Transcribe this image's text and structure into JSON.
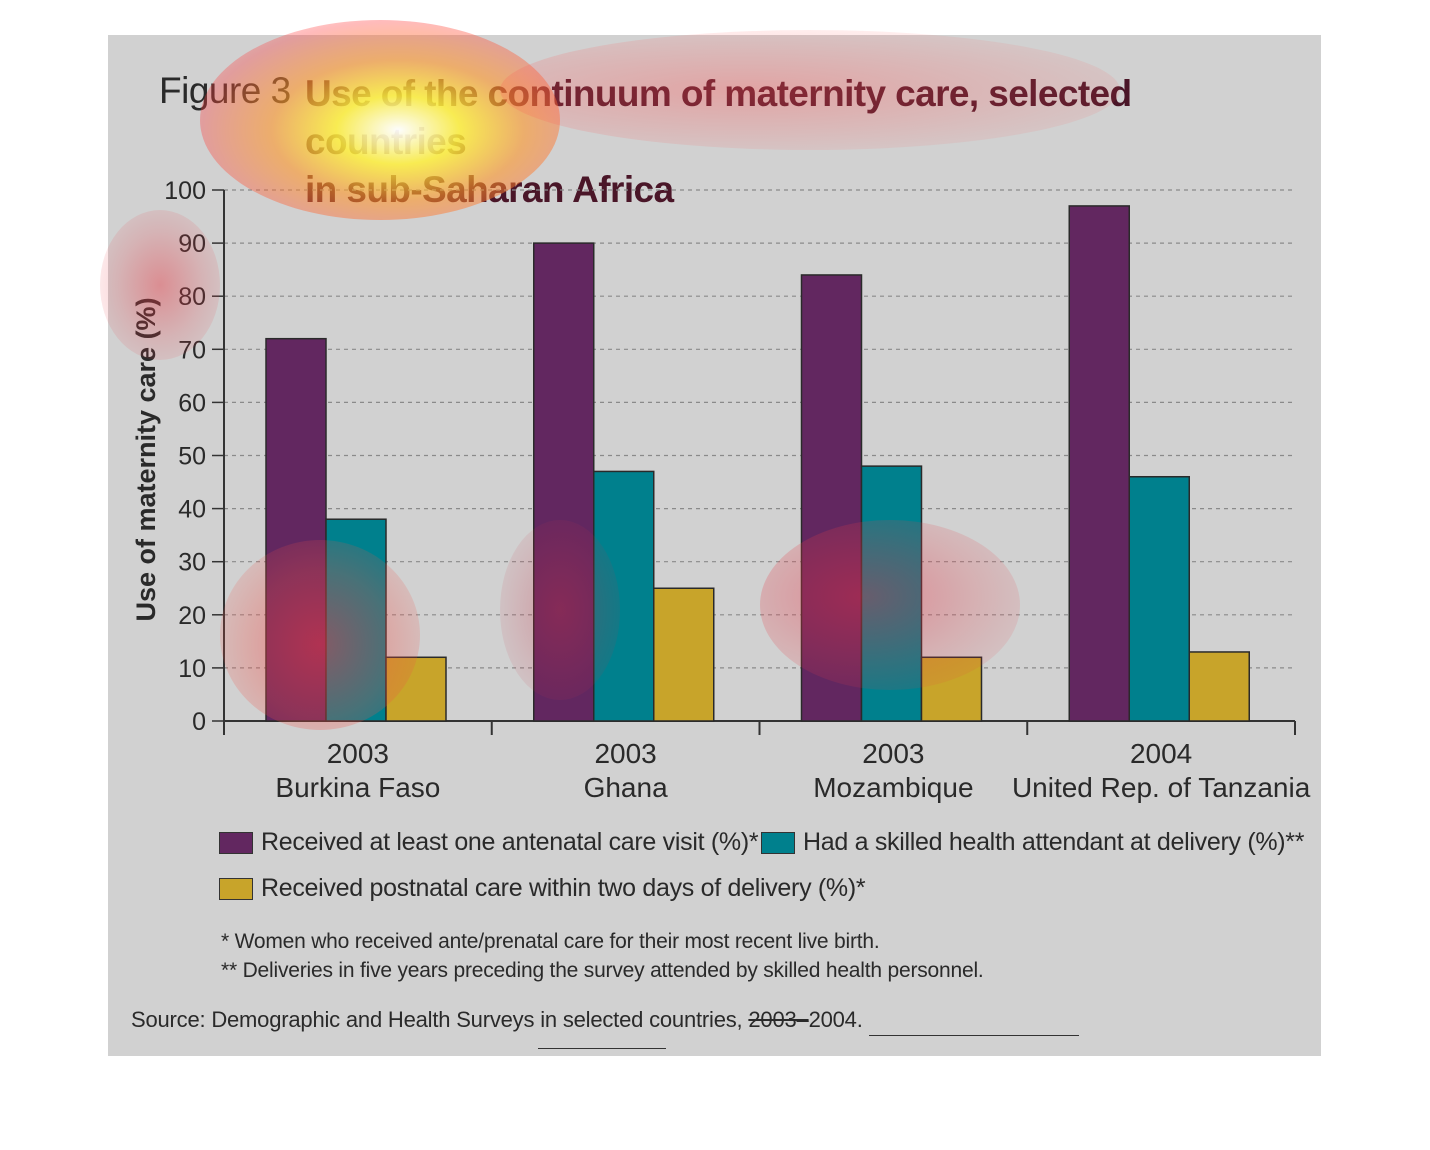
{
  "figure": {
    "label": "Figure 3",
    "title_line1": "Use of the continuum of maternity care, selected countries",
    "title_line2": "in sub-Saharan Africa"
  },
  "chart_data": {
    "type": "bar",
    "title": "Use of the continuum of maternity care, selected countries in sub-Saharan Africa",
    "ylabel": "Use of maternity care (%)",
    "ylim": [
      0,
      100
    ],
    "yticks": [
      "0",
      "10",
      "20",
      "30",
      "40",
      "50",
      "60",
      "70",
      "80",
      "90",
      "100"
    ],
    "grid": true,
    "categories": [
      {
        "year": "2003",
        "country": "Burkina Faso"
      },
      {
        "year": "2003",
        "country": "Ghana"
      },
      {
        "year": "2003",
        "country": "Mozambique"
      },
      {
        "year": "2004",
        "country": "United Rep. of Tanzania"
      }
    ],
    "series": [
      {
        "name": "Received at least one antenatal care visit (%)*",
        "color": "#622760",
        "values": [
          72,
          90,
          84,
          97
        ]
      },
      {
        "name": "Had a skilled health attendant at delivery (%)**",
        "color": "#00808d",
        "values": [
          38,
          47,
          48,
          46
        ]
      },
      {
        "name": "Received postnatal care within two days of delivery (%)*",
        "color": "#c8a42a",
        "values": [
          12,
          25,
          12,
          13
        ]
      }
    ]
  },
  "notes": {
    "note1": "* Women who received ante/prenatal care for their most recent live birth.",
    "note2": "** Deliveries in five years preceding the survey attended by skilled health personnel."
  },
  "source": {
    "prefix": "Source: Demographic and Health Surveys in selected countries, ",
    "struck": "2003–",
    "suffix": "2004."
  }
}
